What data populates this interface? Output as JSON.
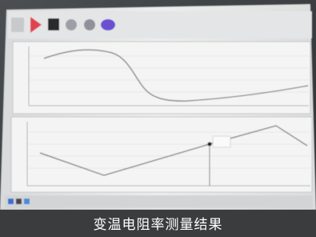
{
  "caption": "变温电阻率测量结果"
}
